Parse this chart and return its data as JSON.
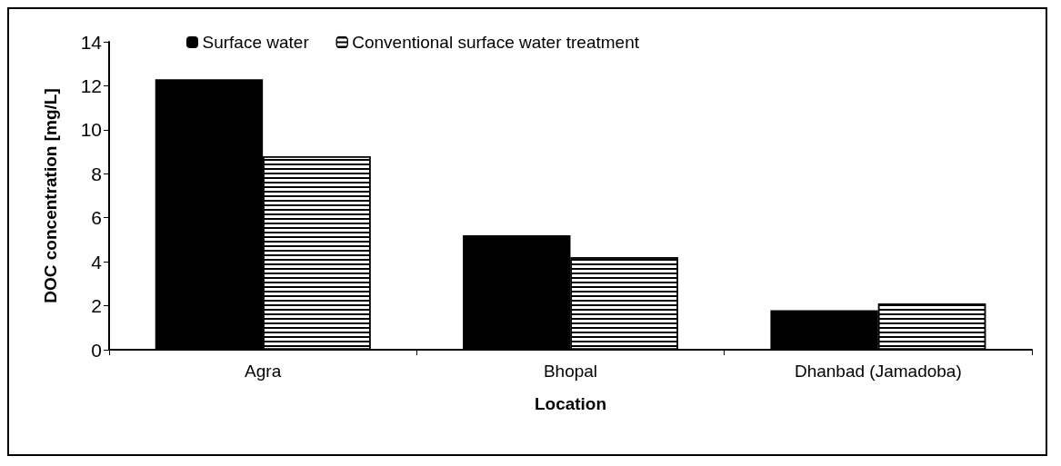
{
  "chart_data": {
    "type": "bar",
    "xlabel": "Location",
    "ylabel": "DOC concentration [mg/L]",
    "categories": [
      "Agra",
      "Bhopal",
      "Dhanbad (Jamadoba)"
    ],
    "series": [
      {
        "name": "Surface water",
        "color": "#000000",
        "values": [
          12.3,
          5.2,
          1.8
        ]
      },
      {
        "name": "Conventional surface water treatment",
        "color": "#ffffff",
        "values": [
          8.8,
          4.2,
          2.1
        ]
      }
    ],
    "ylim": [
      0,
      14
    ],
    "yticks": [
      0,
      2,
      4,
      6,
      8,
      10,
      12,
      14
    ],
    "grid": false,
    "legend": "top left"
  }
}
